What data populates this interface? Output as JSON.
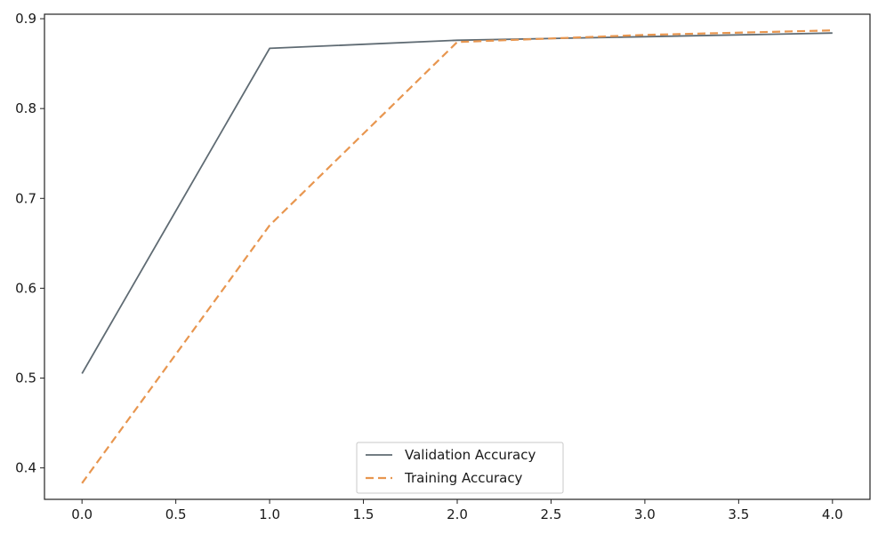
{
  "chart_data": {
    "type": "line",
    "title": "",
    "xlabel": "",
    "ylabel": "",
    "xlim": [
      -0.2,
      4.2
    ],
    "ylim": [
      0.365,
      0.905
    ],
    "x_ticks": [
      0.0,
      0.5,
      1.0,
      1.5,
      2.0,
      2.5,
      3.0,
      3.5,
      4.0
    ],
    "x_tick_labels": [
      "0.0",
      "0.5",
      "1.0",
      "1.5",
      "2.0",
      "2.5",
      "3.0",
      "3.5",
      "4.0"
    ],
    "y_ticks": [
      0.4,
      0.5,
      0.6,
      0.7,
      0.8,
      0.9
    ],
    "y_tick_labels": [
      "0.4",
      "0.5",
      "0.6",
      "0.7",
      "0.8",
      "0.9"
    ],
    "grid": false,
    "legend_position": "bottom-center",
    "x": [
      0,
      1,
      2,
      3,
      4
    ],
    "series": [
      {
        "name": "Validation Accuracy",
        "values": [
          0.505,
          0.867,
          0.876,
          0.88,
          0.884
        ],
        "color": "#5f6b73",
        "style": "solid"
      },
      {
        "name": "Training Accuracy",
        "values": [
          0.383,
          0.67,
          0.874,
          0.882,
          0.887
        ],
        "color": "#e8964f",
        "style": "dashed"
      }
    ]
  }
}
